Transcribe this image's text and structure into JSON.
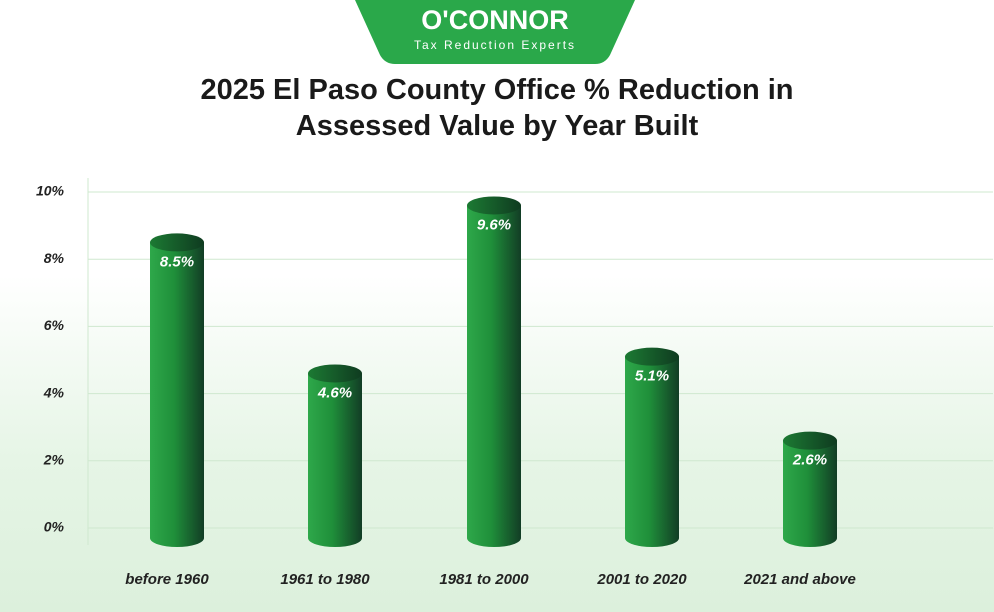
{
  "logo": {
    "name": "O'CONNOR",
    "tagline": "Tax Reduction Experts"
  },
  "chart_data": {
    "type": "bar",
    "title": "2025 El Paso County Office % Reduction in Assessed Value by Year Built",
    "categories": [
      "before 1960",
      "1961 to 1980",
      "1981 to 2000",
      "2001 to 2020",
      "2021 and above"
    ],
    "values": [
      8.5,
      4.6,
      9.6,
      5.1,
      2.6
    ],
    "value_labels": [
      "8.5%",
      "4.6%",
      "9.6%",
      "5.1%",
      "2.6%"
    ],
    "color": "#1f9a3c",
    "ylim": [
      0,
      10
    ],
    "yticks": [
      {
        "value": 0,
        "label": "0%"
      },
      {
        "value": 2,
        "label": "2%"
      },
      {
        "value": 4,
        "label": "4%"
      },
      {
        "value": 6,
        "label": "6%"
      },
      {
        "value": 8,
        "label": "8%"
      },
      {
        "value": 10,
        "label": "10%"
      }
    ],
    "grid": true
  }
}
